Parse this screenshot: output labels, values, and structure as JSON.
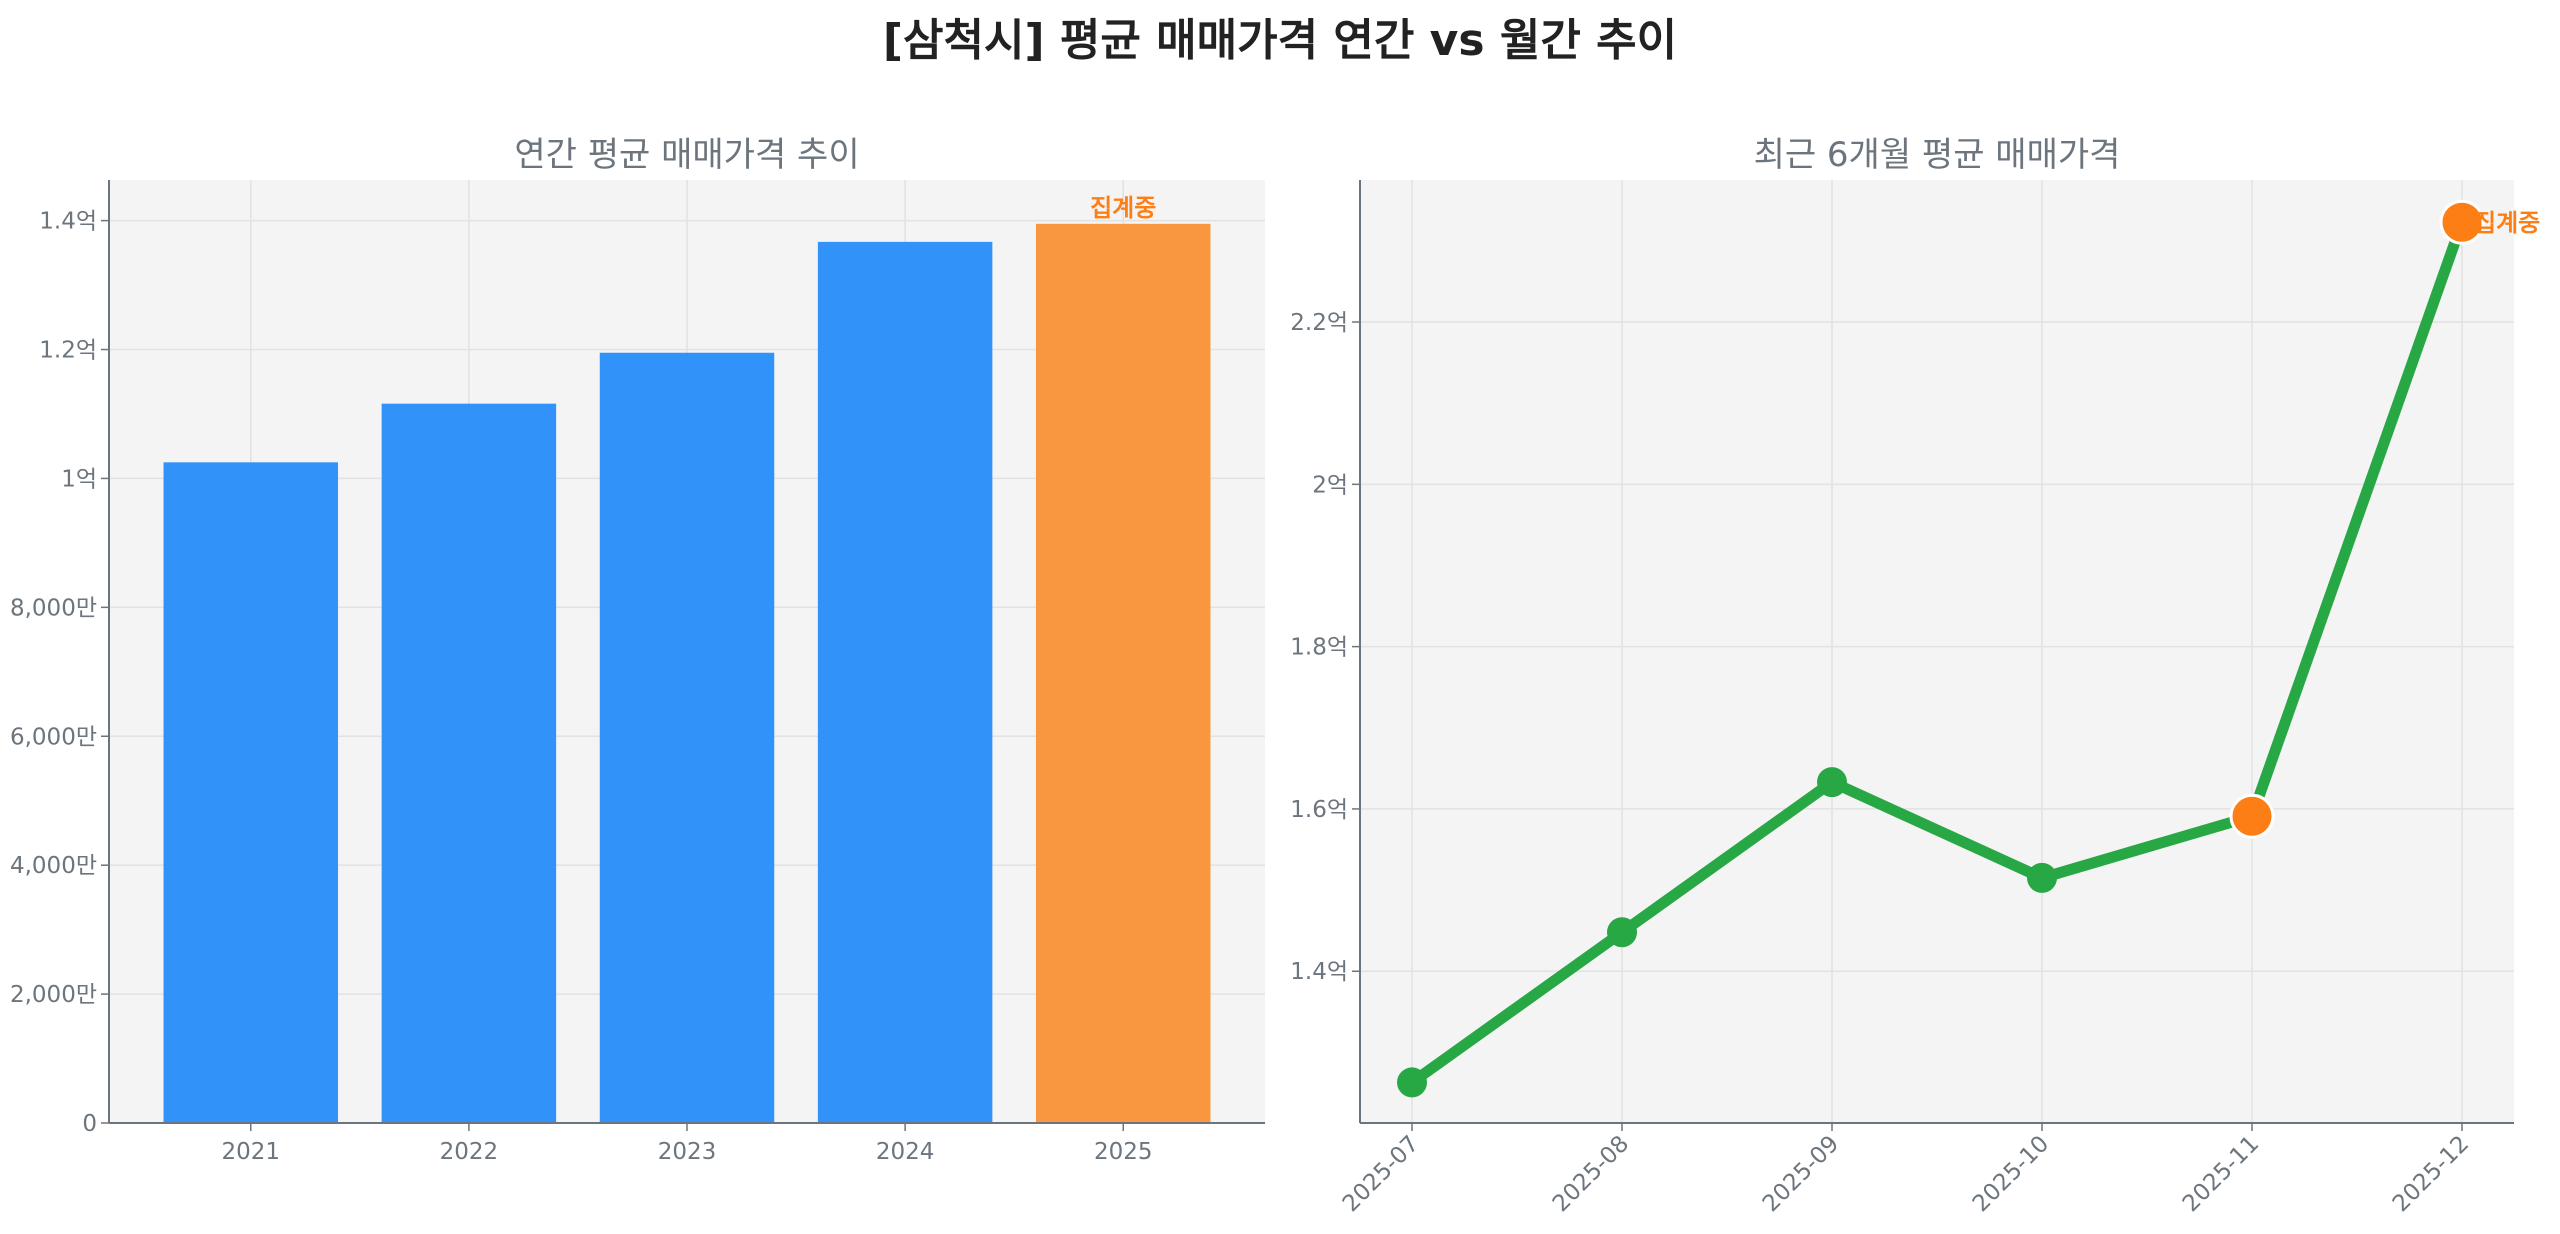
{
  "title": "[삼척시] 평균 매매가격 연간 vs 월간 추이",
  "chart_data": [
    {
      "type": "bar",
      "title": "연간 평균 매매가격 추이",
      "categories": [
        "2021",
        "2022",
        "2023",
        "2024",
        "2025"
      ],
      "values": [
        102500000,
        111600000,
        119500000,
        136700000,
        139500000
      ],
      "unit": "KRW",
      "ylim": [
        0,
        146300000
      ],
      "yticks": [
        0,
        20000000,
        40000000,
        60000000,
        80000000,
        100000000,
        120000000,
        140000000
      ],
      "ytick_labels": [
        "0",
        "2,000만",
        "4,000만",
        "6,000만",
        "8,000만",
        "1억",
        "1.2억",
        "1.4억"
      ],
      "grid": true,
      "colors": {
        "bar": "#3192fa",
        "in_progress_bar": "#f99740"
      },
      "annotations": [
        {
          "category": "2025",
          "text": "집계중"
        }
      ]
    },
    {
      "type": "line",
      "title": "최근 6개월 평균 매매가격",
      "x": [
        "2025-07",
        "2025-08",
        "2025-09",
        "2025-10",
        "2025-11",
        "2025-12"
      ],
      "values": [
        126300000,
        144800000,
        163300000,
        151500000,
        159100000,
        232300000
      ],
      "unit": "KRW",
      "ylim": [
        121300000,
        237500000
      ],
      "yticks": [
        140000000,
        160000000,
        180000000,
        200000000,
        220000000
      ],
      "ytick_labels": [
        "1.4억",
        "1.6억",
        "1.8억",
        "2억",
        "2.2억"
      ],
      "highlight_points": [
        "2025-11",
        "2025-12"
      ],
      "grid": true,
      "colors": {
        "line": "#28a745",
        "highlight_marker": "#fd7e14"
      },
      "annotations": [
        {
          "x": "2025-12",
          "text": "집계중"
        }
      ]
    }
  ]
}
